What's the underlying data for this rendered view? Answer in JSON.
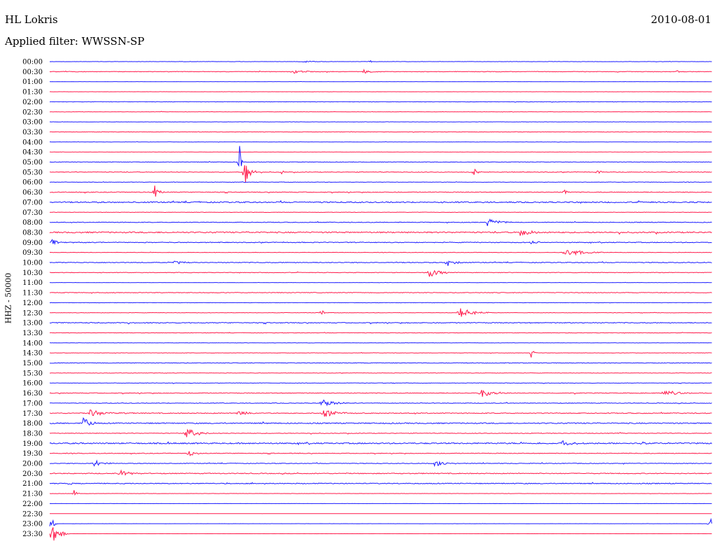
{
  "header": {
    "station": "HL Lokris",
    "date": "2010-08-01",
    "filter": "Applied filter: WWSSN-SP",
    "channel_label": "HHZ - 50000"
  },
  "colors": {
    "even_hour": "#1a1aff",
    "odd_half": "#ff1a4b"
  },
  "chart_data": {
    "type": "line",
    "title": "HL Lokris",
    "subtitle": "Applied filter: WWSSN-SP",
    "date": "2010-08-01",
    "ylabel": "HHZ - 50000",
    "row_minutes": 30,
    "x_range_minutes": [
      0,
      30
    ],
    "series_labels": [
      "00:00",
      "00:30",
      "01:00",
      "01:30",
      "02:00",
      "02:30",
      "03:00",
      "03:30",
      "04:00",
      "04:30",
      "05:00",
      "05:30",
      "06:00",
      "06:30",
      "07:00",
      "07:30",
      "08:00",
      "08:30",
      "09:00",
      "09:30",
      "10:00",
      "10:30",
      "11:00",
      "11:30",
      "12:00",
      "12:30",
      "13:00",
      "13:30",
      "14:00",
      "14:30",
      "15:00",
      "15:30",
      "16:00",
      "16:30",
      "17:00",
      "17:30",
      "18:00",
      "18:30",
      "19:00",
      "19:30",
      "20:00",
      "20:30",
      "21:00",
      "21:30",
      "22:00",
      "22:30",
      "23:00",
      "23:30"
    ],
    "noise_level": [
      0.12,
      0.25,
      0.08,
      0.08,
      0.2,
      0.15,
      0.12,
      0.18,
      0.12,
      0.1,
      0.25,
      0.3,
      0.2,
      0.35,
      0.55,
      0.2,
      0.3,
      0.6,
      0.35,
      0.2,
      0.35,
      0.25,
      0.12,
      0.3,
      0.15,
      0.2,
      0.4,
      0.2,
      0.15,
      0.2,
      0.3,
      0.2,
      0.2,
      0.35,
      0.3,
      0.4,
      0.5,
      0.3,
      0.6,
      0.3,
      0.3,
      0.4,
      0.4,
      0.1,
      0.05,
      0.05,
      0.05,
      0.05
    ],
    "events": [
      {
        "row": 0,
        "minute": 11.5,
        "amplitude": 0.25,
        "duration": 1.2
      },
      {
        "row": 0,
        "minute": 14.5,
        "amplitude": 0.3,
        "duration": 0.4
      },
      {
        "row": 1,
        "minute": 11.0,
        "amplitude": 0.35,
        "duration": 1.5
      },
      {
        "row": 1,
        "minute": 14.2,
        "amplitude": 0.45,
        "duration": 0.8
      },
      {
        "row": 1,
        "minute": 28.4,
        "amplitude": 0.3,
        "duration": 0.5
      },
      {
        "row": 3,
        "minute": 8.5,
        "amplitude": 0.05,
        "duration": 0.2
      },
      {
        "row": 10,
        "minute": 8.6,
        "amplitude": 4.0,
        "duration": 0.15
      },
      {
        "row": 11,
        "minute": 8.8,
        "amplitude": 3.0,
        "duration": 0.6
      },
      {
        "row": 11,
        "minute": 10.5,
        "amplitude": 0.5,
        "duration": 0.3
      },
      {
        "row": 11,
        "minute": 19.2,
        "amplitude": 0.8,
        "duration": 0.4
      },
      {
        "row": 11,
        "minute": 24.8,
        "amplitude": 0.5,
        "duration": 0.4
      },
      {
        "row": 13,
        "minute": 4.7,
        "amplitude": 2.0,
        "duration": 0.5
      },
      {
        "row": 13,
        "minute": 23.3,
        "amplitude": 0.8,
        "duration": 0.4
      },
      {
        "row": 16,
        "minute": 19.8,
        "amplitude": 0.8,
        "duration": 1.5
      },
      {
        "row": 17,
        "minute": 21.3,
        "amplitude": 0.8,
        "duration": 1.5
      },
      {
        "row": 18,
        "minute": 0.1,
        "amplitude": 1.0,
        "duration": 0.5
      },
      {
        "row": 18,
        "minute": 21.8,
        "amplitude": 0.45,
        "duration": 0.8
      },
      {
        "row": 19,
        "minute": 23.3,
        "amplitude": 0.9,
        "duration": 2.0
      },
      {
        "row": 20,
        "minute": 5.6,
        "amplitude": 0.4,
        "duration": 1.2
      },
      {
        "row": 20,
        "minute": 18.0,
        "amplitude": 1.0,
        "duration": 0.8
      },
      {
        "row": 21,
        "minute": 17.2,
        "amplitude": 1.0,
        "duration": 1.2
      },
      {
        "row": 25,
        "minute": 12.3,
        "amplitude": 1.2,
        "duration": 0.2
      },
      {
        "row": 25,
        "minute": 18.5,
        "amplitude": 1.2,
        "duration": 1.5
      },
      {
        "row": 29,
        "minute": 21.8,
        "amplitude": 1.0,
        "duration": 0.3
      },
      {
        "row": 33,
        "minute": 19.5,
        "amplitude": 0.9,
        "duration": 1.5
      },
      {
        "row": 33,
        "minute": 27.8,
        "amplitude": 0.5,
        "duration": 2.0
      },
      {
        "row": 34,
        "minute": 12.3,
        "amplitude": 0.9,
        "duration": 1.5
      },
      {
        "row": 35,
        "minute": 1.8,
        "amplitude": 0.7,
        "duration": 2.0
      },
      {
        "row": 35,
        "minute": 8.5,
        "amplitude": 0.5,
        "duration": 1.5
      },
      {
        "row": 35,
        "minute": 12.4,
        "amplitude": 0.9,
        "duration": 1.5
      },
      {
        "row": 36,
        "minute": 1.5,
        "amplitude": 1.6,
        "duration": 0.8
      },
      {
        "row": 37,
        "minute": 6.2,
        "amplitude": 1.2,
        "duration": 1.2
      },
      {
        "row": 38,
        "minute": 23.2,
        "amplitude": 0.6,
        "duration": 1.2
      },
      {
        "row": 38,
        "minute": 26.8,
        "amplitude": 0.6,
        "duration": 0.3
      },
      {
        "row": 39,
        "minute": 6.3,
        "amplitude": 0.7,
        "duration": 0.8
      },
      {
        "row": 40,
        "minute": 2.0,
        "amplitude": 0.9,
        "duration": 1.0
      },
      {
        "row": 40,
        "minute": 17.4,
        "amplitude": 0.7,
        "duration": 1.2
      },
      {
        "row": 41,
        "minute": 3.2,
        "amplitude": 0.6,
        "duration": 1.5
      },
      {
        "row": 42,
        "minute": 0.9,
        "amplitude": 0.8,
        "duration": 0.3
      },
      {
        "row": 43,
        "minute": 1.1,
        "amplitude": 0.8,
        "duration": 0.3
      },
      {
        "row": 46,
        "minute": 0.05,
        "amplitude": 2.0,
        "duration": 0.3
      },
      {
        "row": 46,
        "minute": 29.85,
        "amplitude": 2.5,
        "duration": 0.3
      },
      {
        "row": 47,
        "minute": 0.1,
        "amplitude": 2.5,
        "duration": 0.8
      }
    ]
  }
}
